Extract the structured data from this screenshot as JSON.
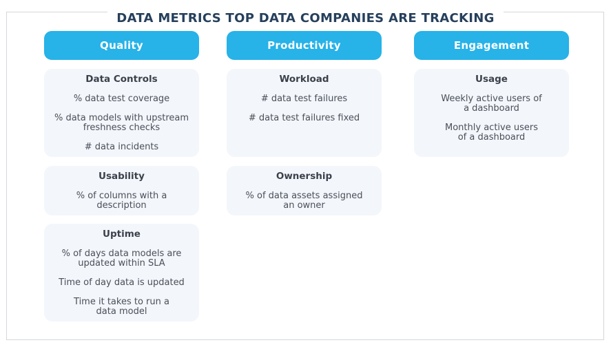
{
  "title": "DATA METRICS TOP DATA COMPANIES ARE TRACKING",
  "columns": [
    {
      "header": "Quality",
      "cards": [
        {
          "title": "Data Controls",
          "metrics": [
            [
              "% data test coverage"
            ],
            [
              "% data models with upstream",
              "freshness checks"
            ],
            [
              "# data incidents"
            ]
          ]
        },
        {
          "title": "Usability",
          "metrics": [
            [
              "% of columns with a",
              "description"
            ]
          ]
        },
        {
          "title": "Uptime",
          "metrics": [
            [
              "% of days data models are",
              "updated within SLA"
            ],
            [
              "Time of day data is updated"
            ],
            [
              "Time it takes to run a",
              "data model"
            ]
          ]
        }
      ]
    },
    {
      "header": "Productivity",
      "cards": [
        {
          "title": "Workload",
          "metrics": [
            [
              "# data test failures"
            ],
            [
              "# data test failures fixed"
            ]
          ]
        },
        {
          "title": "Ownership",
          "metrics": [
            [
              "% of data assets assigned",
              "an owner"
            ]
          ]
        }
      ]
    },
    {
      "header": "Engagement",
      "cards": [
        {
          "title": "Usage",
          "metrics": [
            [
              "Weekly active users of",
              "a dashboard"
            ],
            [
              "Monthly active users",
              "of a dashboard"
            ]
          ]
        }
      ]
    }
  ]
}
